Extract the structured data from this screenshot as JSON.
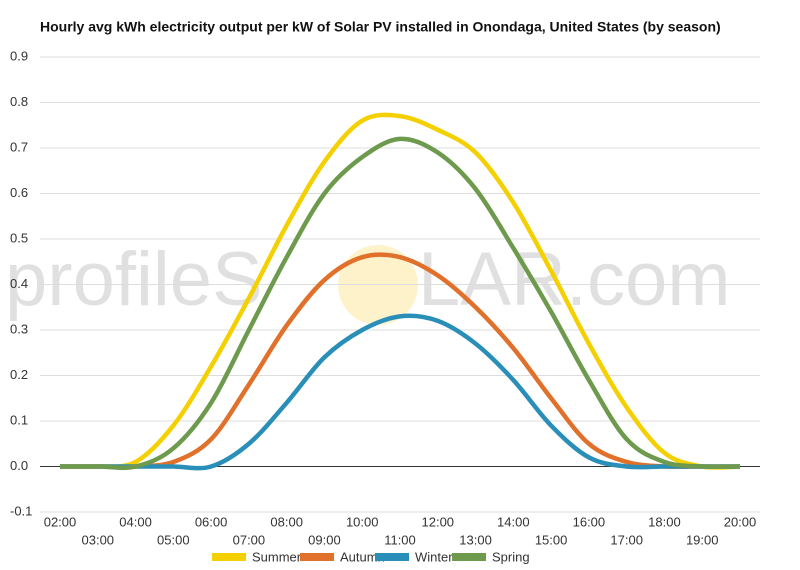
{
  "chart_data": {
    "type": "line",
    "title": "Hourly avg kWh electricity output per kW of Solar PV installed in Onondaga, United States (by season)",
    "watermark": [
      "profileS",
      "LAR.com"
    ],
    "categories": [
      "02:00",
      "03:00",
      "04:00",
      "05:00",
      "06:00",
      "07:00",
      "08:00",
      "09:00",
      "10:00",
      "11:00",
      "12:00",
      "13:00",
      "14:00",
      "15:00",
      "16:00",
      "17:00",
      "18:00",
      "19:00",
      "20:00"
    ],
    "series": [
      {
        "name": "Summer",
        "color": "#f5d000",
        "values": [
          0,
          0,
          0.01,
          0.09,
          0.22,
          0.37,
          0.53,
          0.67,
          0.76,
          0.77,
          0.74,
          0.69,
          0.58,
          0.43,
          0.27,
          0.13,
          0.03,
          0,
          0
        ]
      },
      {
        "name": "Autumn",
        "color": "#e0702a",
        "values": [
          0,
          0,
          0,
          0.01,
          0.06,
          0.18,
          0.31,
          0.41,
          0.46,
          0.46,
          0.42,
          0.35,
          0.26,
          0.15,
          0.05,
          0.01,
          0,
          0,
          0
        ]
      },
      {
        "name": "Winter",
        "color": "#2a8fb8",
        "values": [
          0,
          0,
          0,
          0,
          0,
          0.05,
          0.14,
          0.24,
          0.3,
          0.33,
          0.32,
          0.27,
          0.19,
          0.09,
          0.02,
          0,
          0,
          0,
          0
        ]
      },
      {
        "name": "Spring",
        "color": "#6e9a4e",
        "values": [
          0,
          0,
          0,
          0.04,
          0.14,
          0.3,
          0.46,
          0.6,
          0.68,
          0.72,
          0.69,
          0.61,
          0.48,
          0.34,
          0.19,
          0.06,
          0.01,
          0,
          0
        ]
      }
    ],
    "ylim": [
      -0.1,
      0.9
    ],
    "yticks": [
      -0.1,
      {
        "value": 0,
        "label": "0.0"
      },
      0.1,
      0.2,
      0.3,
      0.4,
      0.5,
      0.6,
      0.7,
      0.8,
      0.9
    ],
    "grid": true,
    "legend": "bottom"
  }
}
